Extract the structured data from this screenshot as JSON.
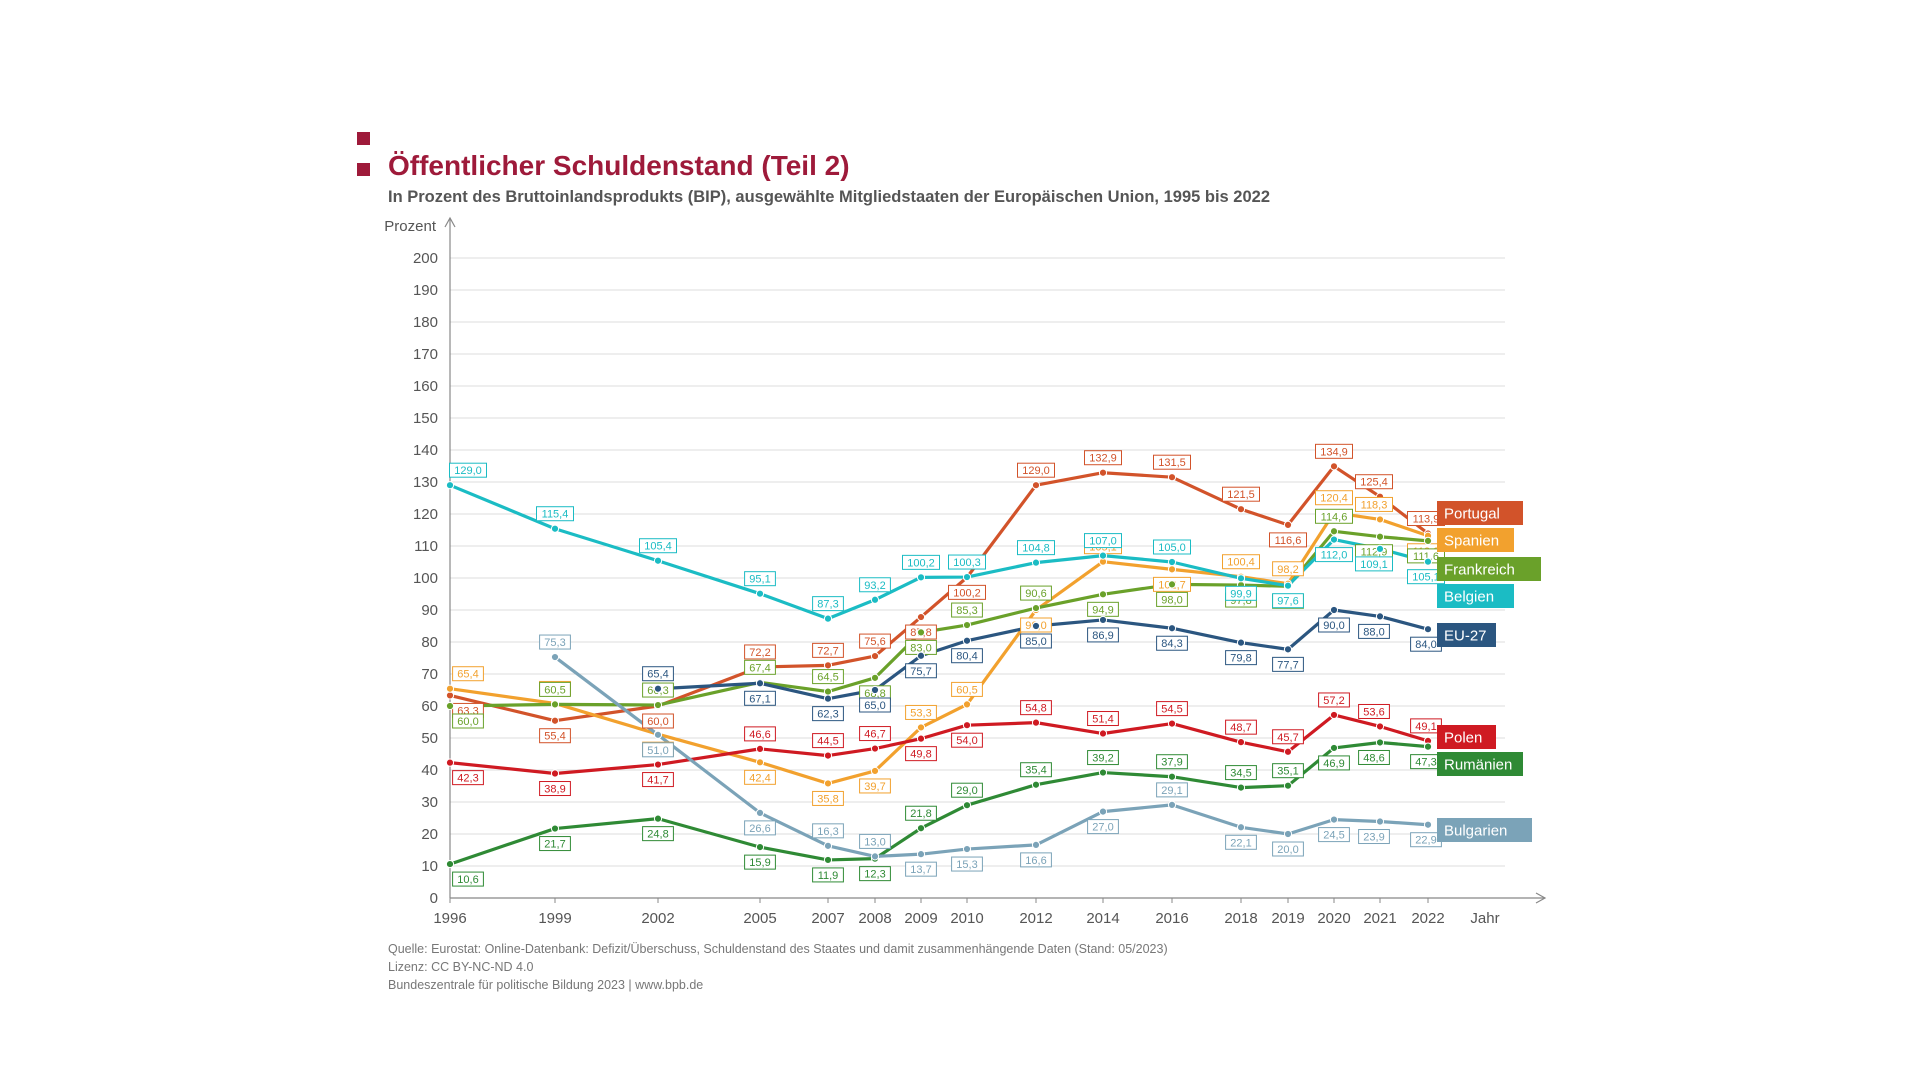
{
  "header": {
    "title": "Öffentlicher Schuldenstand (Teil 2)",
    "subtitle": "In Prozent des Bruttoinlandsprodukts (BIP), ausgewählte Mitgliedstaaten der Europäischen Union, 1995 bis 2022"
  },
  "footer": {
    "source": "Quelle: Eurostat: Online-Datenbank: Defizit/Überschuss, Schuldenstand des Staates und damit zusammenhängende Daten (Stand: 05/2023)",
    "license": "Lizenz: CC BY-NC-ND 4.0",
    "publisher": "Bundeszentrale für politische Bildung 2023  |  www.bpb.de"
  },
  "chart_data": {
    "type": "line",
    "title": "Öffentlicher Schuldenstand (Teil 2)",
    "ylabel": "Prozent",
    "xlabel": "Jahr",
    "ylim": [
      0,
      200
    ],
    "yticks": [
      0,
      10,
      20,
      30,
      40,
      50,
      60,
      70,
      80,
      90,
      100,
      110,
      120,
      130,
      140,
      150,
      160,
      170,
      180,
      190,
      200
    ],
    "grid": true,
    "legend": "right, labels at line ends",
    "x": [
      "1996",
      "1999",
      "2002",
      "2005",
      "2007",
      "2008",
      "2009",
      "2010",
      "2012",
      "2014",
      "2016",
      "2018",
      "2019",
      "2020",
      "2021",
      "2022"
    ],
    "series": [
      {
        "name": "Portugal",
        "color": "#d2532a",
        "values": [
          63.3,
          55.4,
          60.0,
          72.2,
          72.7,
          75.6,
          87.8,
          100.2,
          129.0,
          132.9,
          131.5,
          121.5,
          116.6,
          134.9,
          125.4,
          113.9
        ]
      },
      {
        "name": "Spanien",
        "color": "#f2a12e",
        "values": [
          65.4,
          60.8,
          51.2,
          42.4,
          35.8,
          39.7,
          53.3,
          60.5,
          90.0,
          105.1,
          102.7,
          100.4,
          98.2,
          120.4,
          118.3,
          113.2
        ]
      },
      {
        "name": "Frankreich",
        "color": "#6aa12a",
        "values": [
          60.0,
          60.5,
          60.3,
          67.4,
          64.5,
          68.8,
          83.0,
          85.3,
          90.6,
          94.9,
          98.0,
          97.8,
          97.4,
          114.6,
          112.9,
          111.6
        ]
      },
      {
        "name": "Belgien",
        "color": "#1bbcc4",
        "values": [
          129.0,
          115.4,
          105.4,
          95.1,
          87.3,
          93.2,
          100.2,
          100.3,
          104.8,
          107.0,
          105.0,
          99.9,
          97.6,
          112.0,
          109.1,
          105.1
        ]
      },
      {
        "name": "EU-27",
        "color": "#2b5680",
        "values": [
          null,
          null,
          65.4,
          67.1,
          62.3,
          65.0,
          75.7,
          80.4,
          85.0,
          86.9,
          84.3,
          79.8,
          77.7,
          90.0,
          88.0,
          84.0
        ]
      },
      {
        "name": "Polen",
        "color": "#cf1a22",
        "values": [
          42.3,
          38.9,
          41.7,
          46.6,
          44.5,
          46.7,
          49.8,
          54.0,
          54.8,
          51.4,
          54.5,
          48.7,
          45.7,
          57.2,
          53.6,
          49.1
        ]
      },
      {
        "name": "Rumänien",
        "color": "#2f8a35",
        "values": [
          10.6,
          21.7,
          24.8,
          15.9,
          11.9,
          12.3,
          21.8,
          29.0,
          35.4,
          39.2,
          37.9,
          34.5,
          35.1,
          46.9,
          48.6,
          47.3
        ]
      },
      {
        "name": "Bulgarien",
        "color": "#7ba3b8",
        "values": [
          null,
          75.3,
          51.0,
          26.6,
          16.3,
          13.0,
          13.7,
          15.3,
          16.6,
          27.0,
          29.1,
          22.1,
          20.0,
          24.5,
          23.9,
          22.9
        ]
      }
    ]
  }
}
